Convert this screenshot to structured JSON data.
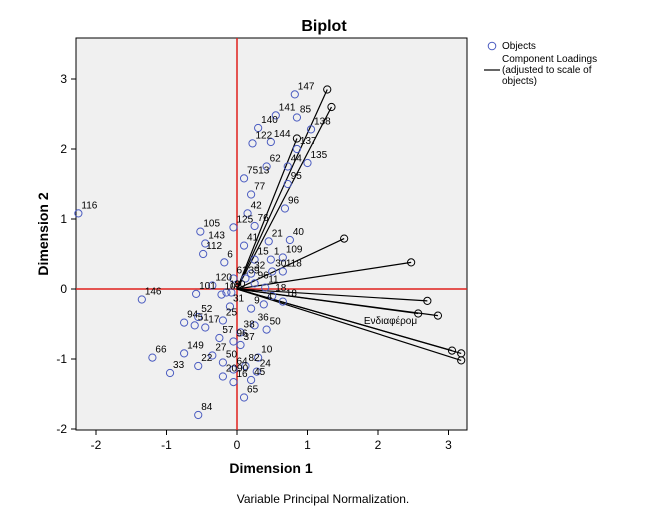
{
  "chart_data": {
    "type": "scatter",
    "title": "Biplot",
    "xlabel": "Dimension 1",
    "ylabel": "Dimension 2",
    "xlim": [
      -2.3,
      3.2
    ],
    "ylim": [
      -2,
      3.5
    ],
    "xticks": [
      -2,
      -1,
      0,
      1,
      2,
      3
    ],
    "yticks": [
      -2,
      -1,
      0,
      1,
      2,
      3
    ],
    "grid": false,
    "reference_lines": {
      "x": 0,
      "y": 0,
      "color": "#e0201c"
    },
    "legend": {
      "position": "right",
      "entries": [
        {
          "label": "Objects",
          "marker": "circle"
        },
        {
          "label": "Component Loadings (adjusted to scale of objects)",
          "marker": "line"
        }
      ]
    },
    "footnote": "Variable Principal Normalization.",
    "loadings": [
      {
        "x": 1.28,
        "y": 2.85
      },
      {
        "x": 1.34,
        "y": 2.6
      },
      {
        "x": 0.85,
        "y": 2.15
      },
      {
        "x": 1.52,
        "y": 0.72
      },
      {
        "x": 2.47,
        "y": 0.38
      },
      {
        "x": 2.7,
        "y": -0.17
      },
      {
        "x": 2.85,
        "y": -0.38
      },
      {
        "x": 2.57,
        "y": -0.35
      },
      {
        "x": 3.05,
        "y": -0.88
      },
      {
        "x": 3.18,
        "y": -0.92
      },
      {
        "x": 3.18,
        "y": -1.02
      }
    ],
    "loading_labels": [
      {
        "text": "Ενδιαφέρομ",
        "x": 1.8,
        "y": -0.5
      }
    ],
    "objects": [
      {
        "label": "116",
        "x": -2.25,
        "y": 1.08
      },
      {
        "label": "146",
        "x": -1.35,
        "y": -0.15
      },
      {
        "label": "105",
        "x": -0.52,
        "y": 0.82
      },
      {
        "label": "143",
        "x": -0.45,
        "y": 0.65
      },
      {
        "label": "112",
        "x": -0.48,
        "y": 0.5
      },
      {
        "label": "6",
        "x": -0.18,
        "y": 0.38
      },
      {
        "label": "120",
        "x": -0.35,
        "y": 0.05
      },
      {
        "label": "19",
        "x": -0.15,
        "y": -0.05
      },
      {
        "label": "61",
        "x": -0.05,
        "y": 0.15
      },
      {
        "label": "101",
        "x": -0.58,
        "y": -0.07
      },
      {
        "label": "102",
        "x": -0.22,
        "y": -0.08
      },
      {
        "label": "80",
        "x": -0.08,
        "y": -0.05
      },
      {
        "label": "52",
        "x": -0.55,
        "y": -0.4
      },
      {
        "label": "25",
        "x": -0.2,
        "y": -0.45
      },
      {
        "label": "94",
        "x": -0.75,
        "y": -0.48
      },
      {
        "label": "51",
        "x": -0.6,
        "y": -0.52
      },
      {
        "label": "17",
        "x": -0.45,
        "y": -0.55
      },
      {
        "label": "57",
        "x": -0.25,
        "y": -0.7
      },
      {
        "label": "66",
        "x": -1.2,
        "y": -0.98
      },
      {
        "label": "149",
        "x": -0.75,
        "y": -0.92
      },
      {
        "label": "22",
        "x": -0.55,
        "y": -1.1
      },
      {
        "label": "33",
        "x": -0.95,
        "y": -1.2
      },
      {
        "label": "27",
        "x": -0.35,
        "y": -0.95
      },
      {
        "label": "50",
        "x": -0.2,
        "y": -1.05
      },
      {
        "label": "2090",
        "x": -0.2,
        "y": -1.25
      },
      {
        "label": "16",
        "x": -0.05,
        "y": -1.33
      },
      {
        "label": "64",
        "x": -0.05,
        "y": -1.15
      },
      {
        "label": "82",
        "x": 0.12,
        "y": -1.1
      },
      {
        "label": "84",
        "x": -0.55,
        "y": -1.8
      },
      {
        "label": "45",
        "x": 0.2,
        "y": -1.3
      },
      {
        "label": "65",
        "x": 0.1,
        "y": -1.55
      },
      {
        "label": "24",
        "x": 0.28,
        "y": -1.18
      },
      {
        "label": "10",
        "x": 0.3,
        "y": -0.98
      },
      {
        "label": "96",
        "x": -0.05,
        "y": -0.75
      },
      {
        "label": "37",
        "x": 0.05,
        "y": -0.8
      },
      {
        "label": "38",
        "x": 0.05,
        "y": -0.62
      },
      {
        "label": "36",
        "x": 0.25,
        "y": -0.52
      },
      {
        "label": "50",
        "x": 0.42,
        "y": -0.58
      },
      {
        "label": "31",
        "x": -0.1,
        "y": -0.25
      },
      {
        "label": "9",
        "x": 0.2,
        "y": -0.28
      },
      {
        "label": "4",
        "x": 0.38,
        "y": -0.22
      },
      {
        "label": "18",
        "x": 0.5,
        "y": -0.1
      },
      {
        "label": "18",
        "x": 0.65,
        "y": -0.18
      },
      {
        "label": "11",
        "x": 0.4,
        "y": 0.02
      },
      {
        "label": "96",
        "x": 0.25,
        "y": 0.08
      },
      {
        "label": "39",
        "x": 0.12,
        "y": 0.15
      },
      {
        "label": "32",
        "x": 0.2,
        "y": 0.22
      },
      {
        "label": "30",
        "x": 0.5,
        "y": 0.25
      },
      {
        "label": "118",
        "x": 0.65,
        "y": 0.25
      },
      {
        "label": "109",
        "x": 0.65,
        "y": 0.45
      },
      {
        "label": "15",
        "x": 0.25,
        "y": 0.42
      },
      {
        "label": "1",
        "x": 0.48,
        "y": 0.42
      },
      {
        "label": "21",
        "x": 0.45,
        "y": 0.68
      },
      {
        "label": "40",
        "x": 0.75,
        "y": 0.7
      },
      {
        "label": "41",
        "x": 0.1,
        "y": 0.62
      },
      {
        "label": "125",
        "x": -0.05,
        "y": 0.88
      },
      {
        "label": "76",
        "x": 0.25,
        "y": 0.9
      },
      {
        "label": "42",
        "x": 0.15,
        "y": 1.08
      },
      {
        "label": "96",
        "x": 0.68,
        "y": 1.15
      },
      {
        "label": "77",
        "x": 0.2,
        "y": 1.35
      },
      {
        "label": "7513",
        "x": 0.1,
        "y": 1.58
      },
      {
        "label": "95",
        "x": 0.72,
        "y": 1.5
      },
      {
        "label": "62",
        "x": 0.42,
        "y": 1.75
      },
      {
        "label": "44",
        "x": 0.72,
        "y": 1.75
      },
      {
        "label": "135",
        "x": 1.0,
        "y": 1.8
      },
      {
        "label": "122",
        "x": 0.22,
        "y": 2.08
      },
      {
        "label": "144",
        "x": 0.48,
        "y": 2.1
      },
      {
        "label": "137",
        "x": 0.85,
        "y": 2.0
      },
      {
        "label": "140",
        "x": 0.3,
        "y": 2.3
      },
      {
        "label": "141",
        "x": 0.55,
        "y": 2.48
      },
      {
        "label": "85",
        "x": 0.85,
        "y": 2.45
      },
      {
        "label": "138",
        "x": 1.05,
        "y": 2.28
      },
      {
        "label": "147",
        "x": 0.82,
        "y": 2.78
      }
    ]
  }
}
